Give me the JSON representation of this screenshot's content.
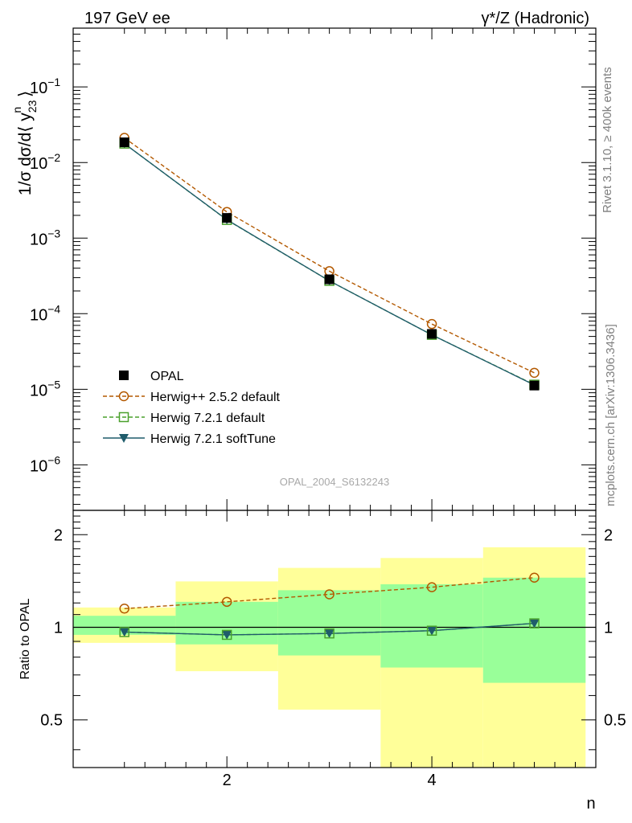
{
  "header": {
    "left_title": "197 GeV ee",
    "right_title": "γ*/Z (Hadronic)"
  },
  "side_text": {
    "rivet": "Rivet 3.1.10, ≥ 400k events",
    "mcplots": "mcplots.cern.ch [arXiv:1306.3436]"
  },
  "watermark": "OPAL_2004_S6132243",
  "colors": {
    "data": "#000000",
    "herwigpp": "#b35900",
    "herwig721": "#4aa02c",
    "softtune": "#1f5c6b",
    "band_outer": "#ffff99",
    "band_inner": "#99ff99"
  },
  "chart_data": [
    {
      "type": "line",
      "panel": "main",
      "ylabel": "1/σ dσ/d⟨ y23n ⟩",
      "ylabel_parts": {
        "main": "1/σ dσ/d⟨ y",
        "sub": "23",
        "sup": "n",
        "close": " ⟩"
      },
      "yscale": "log",
      "ylim": [
        2.5e-07,
        0.6
      ],
      "xlim": [
        0.5,
        5.6
      ],
      "yticks": [
        {
          "value": 1e-06,
          "base": "10",
          "exp": "−6"
        },
        {
          "value": 1e-05,
          "base": "10",
          "exp": "−5"
        },
        {
          "value": 0.0001,
          "base": "10",
          "exp": "−4"
        },
        {
          "value": 0.001,
          "base": "10",
          "exp": "−3"
        },
        {
          "value": 0.01,
          "base": "10",
          "exp": "−2"
        },
        {
          "value": 0.1,
          "base": "10",
          "exp": "−1"
        }
      ],
      "x": [
        1,
        2,
        3,
        4,
        5
      ],
      "legend_position": "bottom-left",
      "series": [
        {
          "name": "OPAL",
          "marker": "square-filled",
          "values": [
            0.0185,
            0.00185,
            0.000285,
            5.4e-05,
            1.12e-05
          ]
        },
        {
          "name": "Herwig++ 2.5.2 default",
          "marker": "circle-open",
          "dash": true,
          "values": [
            0.0212,
            0.00222,
            0.000365,
            7.3e-05,
            1.65e-05
          ]
        },
        {
          "name": "Herwig 7.2.1 default",
          "marker": "square-open",
          "dash": true,
          "values": [
            0.0178,
            0.00174,
            0.000272,
            5.25e-05,
            1.15e-05
          ]
        },
        {
          "name": "Herwig 7.2.1 softTune",
          "marker": "triangle-down",
          "dash": false,
          "values": [
            0.0178,
            0.00175,
            0.000272,
            5.25e-05,
            1.14e-05
          ]
        }
      ]
    },
    {
      "type": "line",
      "panel": "ratio",
      "xlabel": "n",
      "ylabel": "Ratio to OPAL",
      "yscale": "log",
      "ylim": [
        0.35,
        2.4
      ],
      "xlim": [
        0.5,
        5.6
      ],
      "yticks": [
        0.5,
        1,
        2
      ],
      "ytick_labels": [
        "0.5",
        "1",
        "2"
      ],
      "xticks": [
        2,
        4
      ],
      "xtick_labels": [
        "2",
        "4"
      ],
      "x": [
        1,
        2,
        3,
        4,
        5
      ],
      "bands": {
        "x_edges": [
          [
            0.5,
            1.5
          ],
          [
            1.5,
            2.5
          ],
          [
            2.5,
            3.5
          ],
          [
            3.5,
            4.5
          ],
          [
            4.5,
            5.5
          ]
        ],
        "outer": [
          [
            0.89,
            1.16
          ],
          [
            0.72,
            1.41
          ],
          [
            0.54,
            1.56
          ],
          [
            0.35,
            1.68
          ],
          [
            0.35,
            1.82
          ]
        ],
        "inner": [
          [
            0.945,
            1.09
          ],
          [
            0.88,
            1.21
          ],
          [
            0.81,
            1.32
          ],
          [
            0.74,
            1.38
          ],
          [
            0.66,
            1.45
          ]
        ]
      },
      "series": [
        {
          "name": "Herwig++ 2.5.2 default",
          "values": [
            1.15,
            1.21,
            1.28,
            1.35,
            1.45
          ]
        },
        {
          "name": "Herwig 7.2.1 default",
          "values": [
            0.965,
            0.945,
            0.955,
            0.975,
            1.03
          ]
        },
        {
          "name": "Herwig 7.2.1 softTune",
          "values": [
            0.965,
            0.945,
            0.955,
            0.975,
            1.03
          ]
        }
      ]
    }
  ]
}
